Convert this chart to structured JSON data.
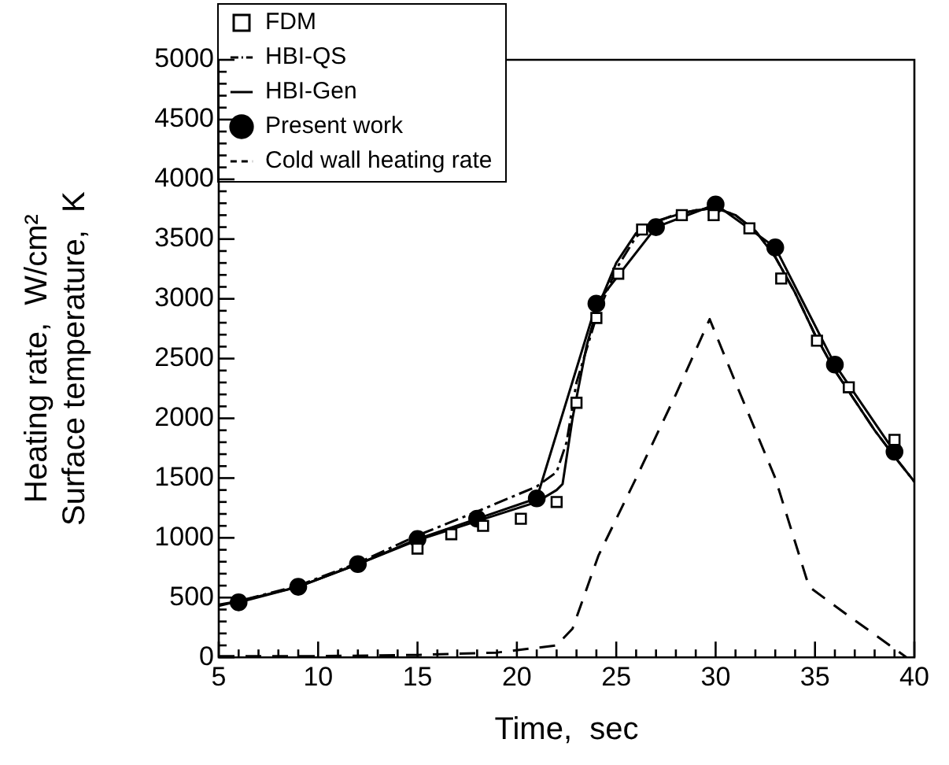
{
  "chart_data": {
    "type": "line",
    "xlabel": "Time,  sec",
    "ylabel": "Heating rate,  W/cm²\nSurface temperature,  K",
    "xlim": [
      5,
      40
    ],
    "ylim": [
      0,
      5000
    ],
    "xticks": [
      5,
      {
        "value": 6,
        "label": null
      },
      {
        "value": 7,
        "label": null
      },
      {
        "value": 8,
        "label": null
      },
      {
        "value": 9,
        "label": null
      },
      10,
      {
        "value": 11,
        "label": null
      },
      {
        "value": 12,
        "label": null
      },
      {
        "value": 13,
        "label": null
      },
      {
        "value": 14,
        "label": null
      },
      15,
      {
        "value": 16,
        "label": null
      },
      {
        "value": 17,
        "label": null
      },
      {
        "value": 18,
        "label": null
      },
      {
        "value": 19,
        "label": null
      },
      20,
      {
        "value": 21,
        "label": null
      },
      {
        "value": 22,
        "label": null
      },
      {
        "value": 23,
        "label": null
      },
      {
        "value": 24,
        "label": null
      },
      25,
      {
        "value": 26,
        "label": null
      },
      {
        "value": 27,
        "label": null
      },
      {
        "value": 28,
        "label": null
      },
      {
        "value": 29,
        "label": null
      },
      30,
      {
        "value": 31,
        "label": null
      },
      {
        "value": 32,
        "label": null
      },
      {
        "value": 33,
        "label": null
      },
      {
        "value": 34,
        "label": null
      },
      35,
      {
        "value": 36,
        "label": null
      },
      {
        "value": 37,
        "label": null
      },
      {
        "value": 38,
        "label": null
      },
      {
        "value": 39,
        "label": null
      },
      40
    ],
    "yticks": [
      0,
      {
        "value": 100,
        "label": null
      },
      {
        "value": 200,
        "label": null
      },
      {
        "value": 300,
        "label": null
      },
      {
        "value": 400,
        "label": null
      },
      500,
      {
        "value": 600,
        "label": null
      },
      {
        "value": 700,
        "label": null
      },
      {
        "value": 800,
        "label": null
      },
      {
        "value": 900,
        "label": null
      },
      1000,
      {
        "value": 1100,
        "label": null
      },
      {
        "value": 1200,
        "label": null
      },
      {
        "value": 1300,
        "label": null
      },
      {
        "value": 1400,
        "label": null
      },
      1500,
      {
        "value": 1600,
        "label": null
      },
      {
        "value": 1700,
        "label": null
      },
      {
        "value": 1800,
        "label": null
      },
      {
        "value": 1900,
        "label": null
      },
      2000,
      {
        "value": 2100,
        "label": null
      },
      {
        "value": 2200,
        "label": null
      },
      {
        "value": 2300,
        "label": null
      },
      {
        "value": 2400,
        "label": null
      },
      2500,
      {
        "value": 2600,
        "label": null
      },
      {
        "value": 2700,
        "label": null
      },
      {
        "value": 2800,
        "label": null
      },
      {
        "value": 2900,
        "label": null
      },
      3000,
      {
        "value": 3100,
        "label": null
      },
      {
        "value": 3200,
        "label": null
      },
      {
        "value": 3300,
        "label": null
      },
      {
        "value": 3400,
        "label": null
      },
      3500,
      {
        "value": 3600,
        "label": null
      },
      {
        "value": 3700,
        "label": null
      },
      {
        "value": 3800,
        "label": null
      },
      {
        "value": 3900,
        "label": null
      },
      4000,
      {
        "value": 4100,
        "label": null
      },
      {
        "value": 4200,
        "label": null
      },
      {
        "value": 4300,
        "label": null
      },
      {
        "value": 4400,
        "label": null
      },
      4500,
      {
        "value": 4600,
        "label": null
      },
      {
        "value": 4700,
        "label": null
      },
      {
        "value": 4800,
        "label": null
      },
      {
        "value": 4900,
        "label": null
      },
      5000
    ],
    "grid": false,
    "legend": "top left",
    "series": [
      {
        "name": "FDM",
        "type": "scatter",
        "marker": "square",
        "color": "#000000",
        "x": [
          15,
          16.7,
          18.3,
          20.2,
          22,
          23,
          24,
          25.1,
          26.3,
          28.3,
          29.9,
          31.7,
          33.3,
          35.1,
          36.7,
          39
        ],
        "values": [
          910,
          1030,
          1100,
          1160,
          1300,
          2130,
          2840,
          3210,
          3580,
          3700,
          3700,
          3590,
          3170,
          2650,
          2260,
          1820
        ]
      },
      {
        "name": "HBI-QS",
        "type": "line",
        "marker": "none",
        "line_style": "dashdot",
        "color": "#000000",
        "x": [
          5,
          6,
          9,
          12,
          15,
          18,
          21,
          22,
          22.5,
          23,
          24,
          25,
          26,
          27,
          28,
          29,
          30,
          31,
          32,
          33,
          34,
          35,
          36,
          37,
          38,
          39,
          40
        ],
        "values": [
          440,
          470,
          600,
          790,
          1020,
          1220,
          1430,
          1550,
          1800,
          2300,
          2850,
          3250,
          3520,
          3640,
          3710,
          3740,
          3760,
          3700,
          3570,
          3350,
          3050,
          2700,
          2400,
          2150,
          1900,
          1680,
          1470
        ]
      },
      {
        "name": "HBI-Gen",
        "type": "line",
        "marker": "none",
        "line_style": "solid",
        "color": "#000000",
        "x": [
          5,
          6,
          9,
          12,
          15,
          18,
          21,
          22,
          22.3,
          22.8,
          23.5,
          24,
          25,
          26,
          27,
          28,
          29,
          30,
          31,
          32,
          33,
          34,
          35,
          36,
          37,
          38,
          39,
          40
        ],
        "values": [
          430,
          470,
          590,
          780,
          980,
          1140,
          1300,
          1400,
          1450,
          2000,
          2600,
          2900,
          3300,
          3550,
          3650,
          3700,
          3740,
          3760,
          3700,
          3570,
          3350,
          3050,
          2700,
          2400,
          2150,
          1900,
          1680,
          1470
        ]
      },
      {
        "name": "Present work",
        "type": "line",
        "marker": "circle",
        "line_style": "solid",
        "color": "#000000",
        "x": [
          6,
          9,
          12,
          15,
          18,
          21,
          24,
          27,
          30,
          33,
          36,
          39
        ],
        "values": [
          460,
          590,
          780,
          990,
          1160,
          1330,
          2960,
          3600,
          3790,
          3430,
          2450,
          1720
        ]
      },
      {
        "name": "Cold wall heating rate",
        "type": "line",
        "marker": "none",
        "line_style": "dashed",
        "color": "#000000",
        "x": [
          5,
          10,
          15,
          19,
          22,
          22.8,
          24.1,
          26,
          28,
          29.7,
          31,
          33,
          34.7,
          36.5,
          39.6
        ],
        "values": [
          10,
          10,
          20,
          40,
          100,
          240,
          850,
          1500,
          2200,
          2830,
          2300,
          1500,
          590,
          370,
          0
        ]
      }
    ]
  }
}
